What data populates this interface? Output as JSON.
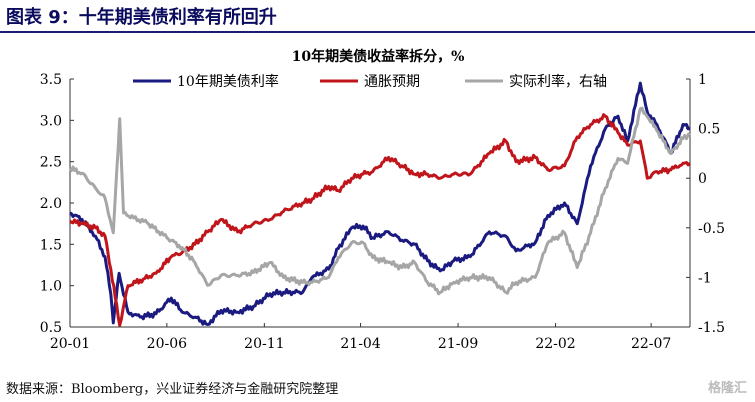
{
  "header": {
    "title": "图表 9：十年期美债利率有所回升"
  },
  "source": "数据来源：Bloomberg，兴业证券经济与金融研究院整理",
  "watermark": "格隆汇",
  "chart_data": {
    "type": "line",
    "title": "10年期美债收益率拆分，%",
    "x_ticks": [
      "20-01",
      "20-06",
      "20-11",
      "21-04",
      "21-09",
      "22-02",
      "22-07"
    ],
    "y_left": {
      "ticks": [
        "0.5",
        "1.0",
        "1.5",
        "2.0",
        "2.5",
        "3.0",
        "3.5"
      ],
      "lim": [
        0.5,
        3.5
      ]
    },
    "y_right": {
      "ticks": [
        "-1.5",
        "-1",
        "-0.5",
        "0",
        "0.5",
        "1"
      ],
      "lim": [
        -1.5,
        1.0
      ]
    },
    "legend_position": "top",
    "grid": false,
    "series": [
      {
        "name": "10年期美债利率",
        "color": "#1a1a80",
        "axis": "left",
        "points": [
          [
            "2020-01-01",
            1.88
          ],
          [
            "2020-01-20",
            1.8
          ],
          [
            "2020-02-10",
            1.6
          ],
          [
            "2020-02-25",
            1.35
          ],
          [
            "2020-03-05",
            0.9
          ],
          [
            "2020-03-09",
            0.55
          ],
          [
            "2020-03-18",
            1.15
          ],
          [
            "2020-04-01",
            0.68
          ],
          [
            "2020-04-20",
            0.62
          ],
          [
            "2020-05-15",
            0.66
          ],
          [
            "2020-06-08",
            0.85
          ],
          [
            "2020-06-25",
            0.68
          ],
          [
            "2020-07-15",
            0.62
          ],
          [
            "2020-08-04",
            0.53
          ],
          [
            "2020-08-25",
            0.7
          ],
          [
            "2020-09-20",
            0.68
          ],
          [
            "2020-10-15",
            0.75
          ],
          [
            "2020-11-10",
            0.9
          ],
          [
            "2020-12-01",
            0.92
          ],
          [
            "2020-12-31",
            0.92
          ],
          [
            "2021-01-15",
            1.1
          ],
          [
            "2021-02-10",
            1.2
          ],
          [
            "2021-02-25",
            1.45
          ],
          [
            "2021-03-18",
            1.7
          ],
          [
            "2021-04-05",
            1.72
          ],
          [
            "2021-04-20",
            1.58
          ],
          [
            "2021-05-15",
            1.65
          ],
          [
            "2021-06-05",
            1.55
          ],
          [
            "2021-06-25",
            1.5
          ],
          [
            "2021-07-15",
            1.3
          ],
          [
            "2021-08-04",
            1.18
          ],
          [
            "2021-08-25",
            1.3
          ],
          [
            "2021-09-20",
            1.35
          ],
          [
            "2021-10-20",
            1.65
          ],
          [
            "2021-11-15",
            1.6
          ],
          [
            "2021-12-01",
            1.42
          ],
          [
            "2021-12-31",
            1.52
          ],
          [
            "2022-01-20",
            1.85
          ],
          [
            "2022-02-15",
            2.0
          ],
          [
            "2022-03-07",
            1.75
          ],
          [
            "2022-03-28",
            2.45
          ],
          [
            "2022-04-20",
            2.9
          ],
          [
            "2022-05-10",
            3.05
          ],
          [
            "2022-05-25",
            2.75
          ],
          [
            "2022-06-14",
            3.45
          ],
          [
            "2022-06-25",
            3.1
          ],
          [
            "2022-07-10",
            2.95
          ],
          [
            "2022-08-01",
            2.6
          ],
          [
            "2022-08-20",
            2.95
          ],
          [
            "2022-08-31",
            2.9
          ]
        ]
      },
      {
        "name": "通胀预期",
        "color": "#c0151b",
        "axis": "left",
        "points": [
          [
            "2020-01-01",
            1.78
          ],
          [
            "2020-01-20",
            1.75
          ],
          [
            "2020-02-10",
            1.7
          ],
          [
            "2020-02-25",
            1.6
          ],
          [
            "2020-03-05",
            1.2
          ],
          [
            "2020-03-19",
            0.52
          ],
          [
            "2020-04-01",
            1.0
          ],
          [
            "2020-04-25",
            1.08
          ],
          [
            "2020-05-15",
            1.15
          ],
          [
            "2020-06-08",
            1.35
          ],
          [
            "2020-06-25",
            1.4
          ],
          [
            "2020-07-15",
            1.5
          ],
          [
            "2020-08-04",
            1.65
          ],
          [
            "2020-08-25",
            1.8
          ],
          [
            "2020-09-20",
            1.65
          ],
          [
            "2020-10-15",
            1.75
          ],
          [
            "2020-11-10",
            1.8
          ],
          [
            "2020-12-01",
            1.9
          ],
          [
            "2020-12-31",
            2.0
          ],
          [
            "2021-01-15",
            2.05
          ],
          [
            "2021-02-10",
            2.2
          ],
          [
            "2021-02-25",
            2.15
          ],
          [
            "2021-03-18",
            2.3
          ],
          [
            "2021-04-05",
            2.35
          ],
          [
            "2021-04-20",
            2.38
          ],
          [
            "2021-05-15",
            2.55
          ],
          [
            "2021-06-05",
            2.45
          ],
          [
            "2021-06-25",
            2.35
          ],
          [
            "2021-07-15",
            2.35
          ],
          [
            "2021-08-04",
            2.3
          ],
          [
            "2021-08-25",
            2.35
          ],
          [
            "2021-09-20",
            2.35
          ],
          [
            "2021-10-20",
            2.6
          ],
          [
            "2021-11-15",
            2.75
          ],
          [
            "2021-12-01",
            2.5
          ],
          [
            "2021-12-31",
            2.55
          ],
          [
            "2022-01-20",
            2.4
          ],
          [
            "2022-02-15",
            2.45
          ],
          [
            "2022-03-07",
            2.8
          ],
          [
            "2022-03-28",
            2.95
          ],
          [
            "2022-04-20",
            3.05
          ],
          [
            "2022-05-10",
            2.85
          ],
          [
            "2022-05-25",
            2.7
          ],
          [
            "2022-06-14",
            2.75
          ],
          [
            "2022-06-25",
            2.3
          ],
          [
            "2022-07-10",
            2.38
          ],
          [
            "2022-08-01",
            2.4
          ],
          [
            "2022-08-20",
            2.48
          ],
          [
            "2022-08-31",
            2.48
          ]
        ]
      },
      {
        "name": "实际利率，右轴",
        "color": "#a6a6a6",
        "axis": "right",
        "points": [
          [
            "2020-01-01",
            0.1
          ],
          [
            "2020-01-20",
            0.05
          ],
          [
            "2020-02-10",
            -0.1
          ],
          [
            "2020-02-25",
            -0.2
          ],
          [
            "2020-03-09",
            -0.55
          ],
          [
            "2020-03-19",
            0.6
          ],
          [
            "2020-03-25",
            -0.35
          ],
          [
            "2020-04-10",
            -0.4
          ],
          [
            "2020-05-01",
            -0.45
          ],
          [
            "2020-06-01",
            -0.6
          ],
          [
            "2020-06-25",
            -0.7
          ],
          [
            "2020-07-15",
            -0.85
          ],
          [
            "2020-08-04",
            -1.08
          ],
          [
            "2020-08-25",
            -0.98
          ],
          [
            "2020-09-20",
            -0.98
          ],
          [
            "2020-10-15",
            -0.95
          ],
          [
            "2020-11-10",
            -0.85
          ],
          [
            "2020-12-01",
            -1.0
          ],
          [
            "2020-12-31",
            -1.05
          ],
          [
            "2021-01-15",
            -1.05
          ],
          [
            "2021-02-10",
            -1.0
          ],
          [
            "2021-02-25",
            -0.8
          ],
          [
            "2021-03-18",
            -0.65
          ],
          [
            "2021-04-05",
            -0.65
          ],
          [
            "2021-04-20",
            -0.8
          ],
          [
            "2021-05-15",
            -0.85
          ],
          [
            "2021-06-05",
            -0.9
          ],
          [
            "2021-06-25",
            -0.85
          ],
          [
            "2021-07-15",
            -1.05
          ],
          [
            "2021-08-04",
            -1.15
          ],
          [
            "2021-08-25",
            -1.05
          ],
          [
            "2021-09-20",
            -1.0
          ],
          [
            "2021-10-20",
            -1.0
          ],
          [
            "2021-11-15",
            -1.15
          ],
          [
            "2021-12-01",
            -1.05
          ],
          [
            "2021-12-31",
            -1.0
          ],
          [
            "2022-01-20",
            -0.65
          ],
          [
            "2022-02-15",
            -0.55
          ],
          [
            "2022-03-07",
            -0.9
          ],
          [
            "2022-03-28",
            -0.55
          ],
          [
            "2022-04-20",
            -0.1
          ],
          [
            "2022-05-10",
            0.2
          ],
          [
            "2022-05-25",
            0.15
          ],
          [
            "2022-06-14",
            0.7
          ],
          [
            "2022-06-25",
            0.62
          ],
          [
            "2022-07-10",
            0.48
          ],
          [
            "2022-08-01",
            0.25
          ],
          [
            "2022-08-20",
            0.4
          ],
          [
            "2022-08-31",
            0.45
          ]
        ]
      }
    ]
  }
}
